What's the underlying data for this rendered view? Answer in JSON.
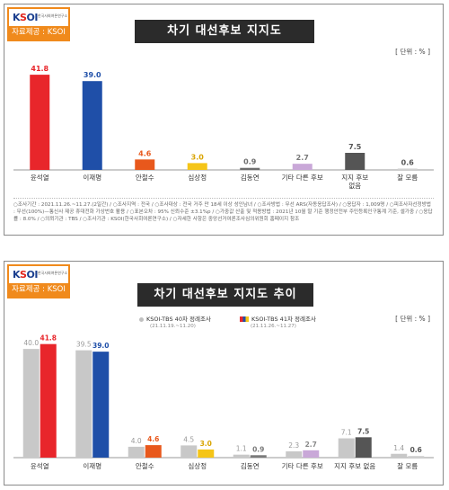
{
  "panel1": {
    "logo": {
      "brand": "KSOI",
      "brand_sub": "한국사회여론연구소",
      "source": "자료제공 : KSOI"
    },
    "title": "차기 대선후보 지지도",
    "unit": "[ 단위 : % ]",
    "notes": "○조사기간 : 2021.11.26.~11.27.(2일간) / ○조사지역 : 전국 / ○조사대상 : 전국 거주 만 18세 이상 성인남녀 / ○조사방법 : 무선 ARS(자동응답조사) / ○응답자 : 1,009명 / ○피조사자선정방법 : 무선(100%)—통신사 제공 휴대전화 가상번호 활용 / ○표본오차 : 95% 신뢰수준 ±3.1%p / ○가중값 산출 및 적용방법 : 2021년 10월 말 기준 행정안전부 주민등록인구통계 기준, 셀가중 / ○응답률 : 8.0% / ○의뢰기관 : TBS / ○조사기관 : KSOI(한국사회여론연구소) / ○자세한 사항은 중앙선거여론조사심의위원회 홈페이지 참조",
    "chart_data": {
      "type": "bar",
      "categories": [
        "윤석열",
        "이재명",
        "안철수",
        "심상정",
        "김동연",
        "기타 다른 후보",
        "지지 후보 없음",
        "잘 모름"
      ],
      "values": [
        41.8,
        39.0,
        4.6,
        3.0,
        0.9,
        2.7,
        7.5,
        0.6
      ],
      "bar_colors": [
        "#e8262b",
        "#1f4fa8",
        "#e8581c",
        "#f5c518",
        "#6e6e6e",
        "#c9a8d8",
        "#555555",
        "#d0d0d0"
      ],
      "ylim": [
        0,
        45
      ],
      "grid": false
    }
  },
  "panel2": {
    "logo": {
      "brand": "KSOI",
      "brand_sub": "한국사회여론연구소",
      "source": "자료제공 : KSOI"
    },
    "title": "차기 대선후보 지지도 추이",
    "unit": "[ 단위 : % ]",
    "legend": [
      {
        "name": "KSOI-TBS 40차 정례조사",
        "dates": "(21.11.19.~11.20)",
        "color": "#c0c0c0"
      },
      {
        "name": "KSOI-TBS 41차 정례조사",
        "dates": "(21.11.26.~11.27)",
        "color": "#e8262b"
      }
    ],
    "chart_data": {
      "type": "bar",
      "categories": [
        "윤석열",
        "이재명",
        "안철수",
        "심상정",
        "김동연",
        "기타 다른 후보",
        "지지 후보 없음",
        "잘 모름"
      ],
      "series": [
        {
          "name": "KSOI-TBS 40차 정례조사",
          "values": [
            40.0,
            39.5,
            4.0,
            4.5,
            1.1,
            2.3,
            7.1,
            1.4
          ],
          "colors": [
            "#c8c8c8",
            "#c8c8c8",
            "#c8c8c8",
            "#c8c8c8",
            "#c8c8c8",
            "#c8c8c8",
            "#c8c8c8",
            "#c8c8c8"
          ]
        },
        {
          "name": "KSOI-TBS 41차 정례조사",
          "values": [
            41.8,
            39.0,
            4.6,
            3.0,
            0.9,
            2.7,
            7.5,
            0.6
          ],
          "colors": [
            "#e8262b",
            "#1f4fa8",
            "#e8581c",
            "#f5c518",
            "#7a7a7a",
            "#c9a8d8",
            "#555555",
            "#d0d0d0"
          ]
        }
      ],
      "ylim": [
        0,
        45
      ],
      "grid": false
    }
  }
}
